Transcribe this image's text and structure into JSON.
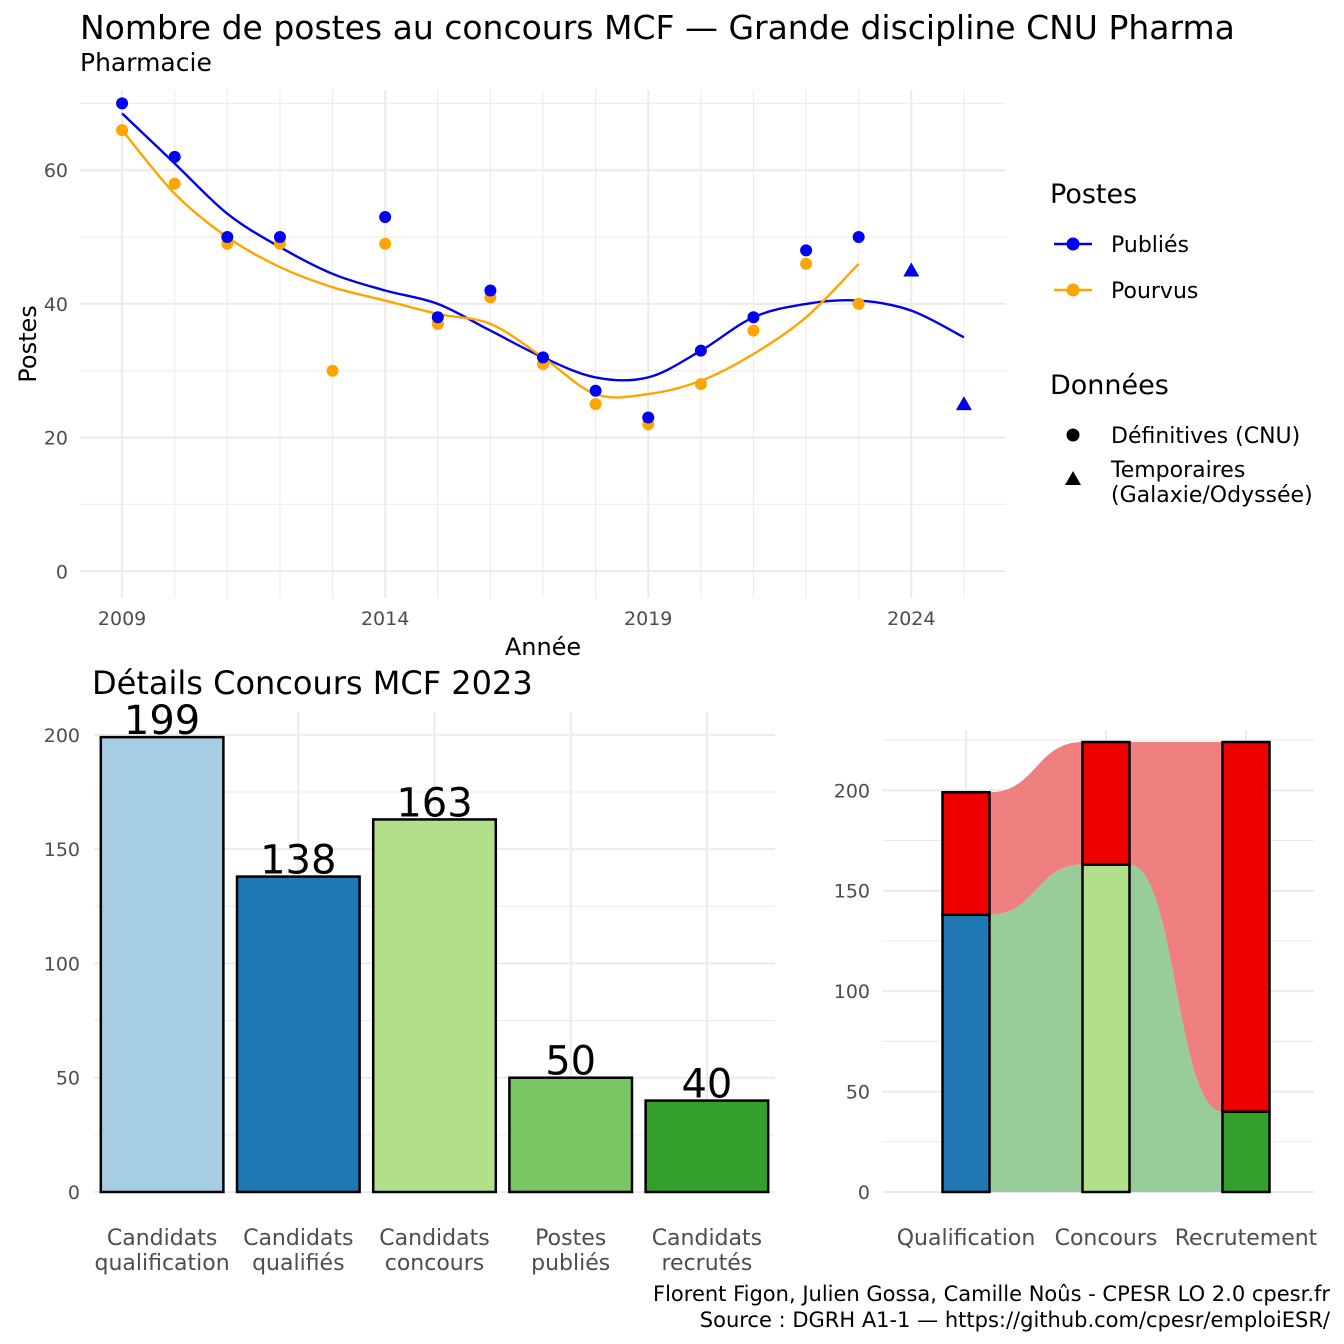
{
  "title": "Nombre de postes au concours MCF —  Grande discipline CNU Pharma",
  "subtitle": "Pharmacie",
  "captions": [
    "Florent Figon, Julien Gossa, Camille Noûs - CPESR LO 2.0 cpesr.fr",
    "Source : DGRH A1-1 — https://github.com/cpesr/emploiESR/"
  ],
  "colors": {
    "publies": "#0000ee",
    "pourvus": "#ffa500",
    "grid": "#ebebeb",
    "axis_text": "#4d4d4d",
    "flow_red": "#f08080",
    "flow_green": "#98cc98",
    "red": "#ee0000"
  },
  "chart_data": [
    {
      "type": "line",
      "title": "Nombre de postes au concours MCF —  Grande discipline CNU Pharma",
      "subtitle": "Pharmacie",
      "xlabel": "Année",
      "ylabel": "Postes",
      "xlim": [
        2008.2,
        2025.8
      ],
      "ylim": [
        -4,
        72
      ],
      "x_ticks": [
        2009,
        2014,
        2019,
        2024
      ],
      "y_ticks": [
        0,
        20,
        40,
        60
      ],
      "grid": true,
      "legend_position": "right",
      "legend": {
        "postes_title": "Postes",
        "series_labels": [
          "Publiés",
          "Pourvus"
        ],
        "donnees_title": "Données",
        "shape_labels": [
          "Définitives (CNU)",
          "Temporaires",
          "(Galaxie/Odyssée)"
        ]
      },
      "series": [
        {
          "name": "Publiés",
          "color": "#0000ee",
          "points": [
            [
              2009,
              70
            ],
            [
              2010,
              62
            ],
            [
              2011,
              50
            ],
            [
              2012,
              50
            ],
            [
              2014,
              53
            ],
            [
              2015,
              38
            ],
            [
              2016,
              42
            ],
            [
              2017,
              32
            ],
            [
              2018,
              27
            ],
            [
              2019,
              23
            ],
            [
              2020,
              33
            ],
            [
              2021,
              38
            ],
            [
              2022,
              48
            ],
            [
              2023,
              50
            ]
          ],
          "temporary_points": [
            [
              2024,
              45
            ],
            [
              2025,
              25
            ]
          ],
          "smooth": [
            [
              2009,
              68.5
            ],
            [
              2010,
              61
            ],
            [
              2011,
              53.5
            ],
            [
              2012,
              48.5
            ],
            [
              2013,
              44.5
            ],
            [
              2014,
              42
            ],
            [
              2015,
              40
            ],
            [
              2016,
              36
            ],
            [
              2017,
              32
            ],
            [
              2018,
              29
            ],
            [
              2019,
              29
            ],
            [
              2020,
              33
            ],
            [
              2021,
              38
            ],
            [
              2022,
              40
            ],
            [
              2023,
              40.5
            ],
            [
              2024,
              39
            ],
            [
              2025,
              35
            ]
          ]
        },
        {
          "name": "Pourvus",
          "color": "#ffa500",
          "points": [
            [
              2009,
              66
            ],
            [
              2010,
              58
            ],
            [
              2011,
              49
            ],
            [
              2012,
              49
            ],
            [
              2013,
              30
            ],
            [
              2014,
              49
            ],
            [
              2015,
              37
            ],
            [
              2016,
              41
            ],
            [
              2017,
              31
            ],
            [
              2018,
              25
            ],
            [
              2019,
              22
            ],
            [
              2020,
              28
            ],
            [
              2021,
              36
            ],
            [
              2022,
              46
            ],
            [
              2023,
              40
            ]
          ],
          "smooth": [
            [
              2009,
              66
            ],
            [
              2010,
              56.5
            ],
            [
              2011,
              50
            ],
            [
              2012,
              45.5
            ],
            [
              2013,
              42.5
            ],
            [
              2014,
              40.5
            ],
            [
              2015,
              38.5
            ],
            [
              2016,
              37
            ],
            [
              2017,
              32
            ],
            [
              2018,
              26.5
            ],
            [
              2019,
              26.5
            ],
            [
              2020,
              28.5
            ],
            [
              2021,
              32.5
            ],
            [
              2022,
              38
            ],
            [
              2023,
              46
            ]
          ]
        }
      ]
    },
    {
      "type": "bar",
      "title": "Détails Concours MCF 2023",
      "categories": [
        [
          "Candidats",
          "qualification"
        ],
        [
          "Candidats",
          "qualifiés"
        ],
        [
          "Candidats",
          "concours"
        ],
        [
          "Postes",
          "publiés"
        ],
        [
          "Candidats",
          "recrutés"
        ]
      ],
      "values": [
        199,
        138,
        163,
        50,
        40
      ],
      "colors": [
        "#a6cee3",
        "#1f78b4",
        "#b2df8a",
        "#7ac462",
        "#33a02c"
      ],
      "ylim": [
        0,
        210
      ],
      "y_ticks": [
        0,
        50,
        100,
        150,
        200
      ],
      "grid": true
    },
    {
      "type": "bar",
      "categories": [
        "Qualification",
        "Concours",
        "Recrutement"
      ],
      "stacks": [
        {
          "total": 199,
          "bottom": 138,
          "bottom_color": "#1f78b4",
          "top_color": "#ee0000"
        },
        {
          "total": 224,
          "bottom": 163,
          "bottom_color": "#b2df8a",
          "top_color": "#ee0000"
        },
        {
          "total": 224,
          "bottom": 40,
          "bottom_color": "#33a02c",
          "top_color": "#ee0000"
        }
      ],
      "ylim": [
        0,
        230
      ],
      "y_ticks": [
        0,
        50,
        100,
        150,
        200
      ],
      "grid": true
    }
  ]
}
